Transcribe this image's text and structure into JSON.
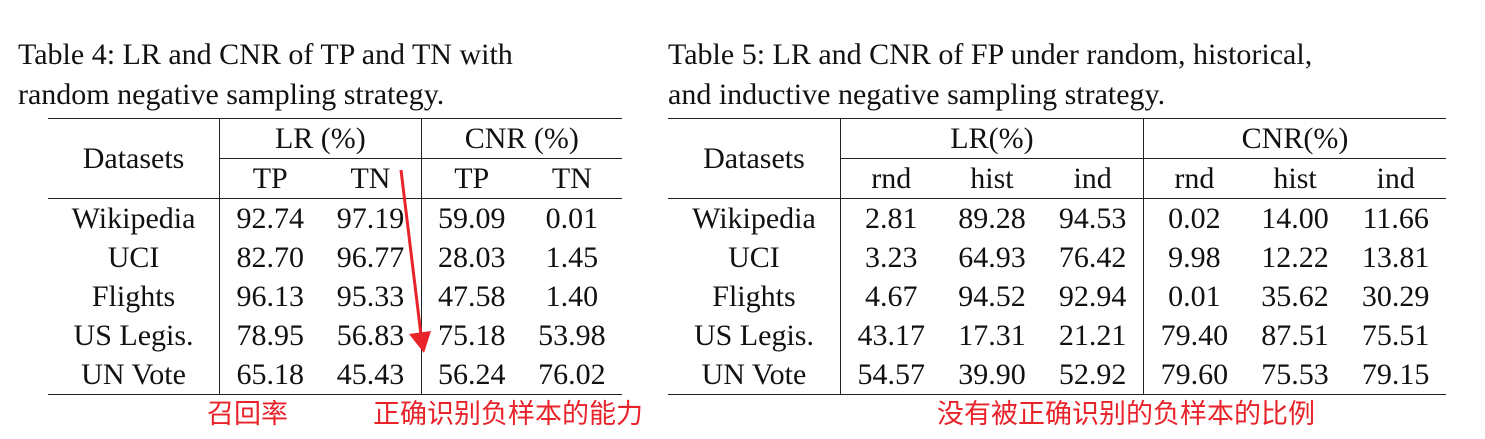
{
  "table4": {
    "caption": "Table 4: LR and CNR of TP and TN with random negative sampling strategy.",
    "caption_line1": "Table 4:  LR and CNR of TP and TN  with",
    "caption_line2": "random negative sampling strategy.",
    "col_datasets": "Datasets",
    "group_lr": "LR (%)",
    "group_cnr": "CNR (%)",
    "sub": [
      "TP",
      "TN",
      "TP",
      "TN"
    ],
    "rows": [
      {
        "name": "Wikipedia",
        "values": [
          "92.74",
          "97.19",
          "59.09",
          "0.01"
        ]
      },
      {
        "name": "UCI",
        "values": [
          "82.70",
          "96.77",
          "28.03",
          "1.45"
        ]
      },
      {
        "name": "Flights",
        "values": [
          "96.13",
          "95.33",
          "47.58",
          "1.40"
        ]
      },
      {
        "name": "US Legis.",
        "values": [
          "78.95",
          "56.83",
          "75.18",
          "53.98"
        ]
      },
      {
        "name": "UN Vote",
        "values": [
          "65.18",
          "45.43",
          "56.24",
          "76.02"
        ]
      }
    ]
  },
  "table5": {
    "caption_line1": "Table 5: LR and CNR of FP under random, historical,",
    "caption_line2": "and inductive negative sampling strategy.",
    "col_datasets": "Datasets",
    "group_lr": "LR(%)",
    "group_cnr": "CNR(%)",
    "sub": [
      "rnd",
      "hist",
      "ind",
      "rnd",
      "hist",
      "ind"
    ],
    "rows": [
      {
        "name": "Wikipedia",
        "values": [
          "2.81",
          "89.28",
          "94.53",
          "0.02",
          "14.00",
          "11.66"
        ]
      },
      {
        "name": "UCI",
        "values": [
          "3.23",
          "64.93",
          "76.42",
          "9.98",
          "12.22",
          "13.81"
        ]
      },
      {
        "name": "Flights",
        "values": [
          "4.67",
          "94.52",
          "92.94",
          "0.01",
          "35.62",
          "30.29"
        ]
      },
      {
        "name": "US Legis.",
        "values": [
          "43.17",
          "17.31",
          "21.21",
          "79.40",
          "87.51",
          "75.51"
        ]
      },
      {
        "name": "UN Vote",
        "values": [
          "54.57",
          "39.90",
          "52.92",
          "79.60",
          "75.53",
          "79.15"
        ]
      }
    ]
  },
  "annotations": {
    "recall": "召回率",
    "tn_ability": "正确识别负样本的能力",
    "fp_ratio": "没有被正确识别的负样本的比例",
    "color": "#e8232a"
  }
}
